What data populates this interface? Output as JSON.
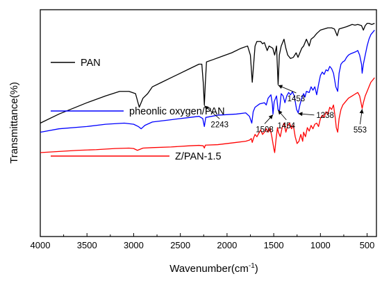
{
  "chart_data": {
    "type": "line",
    "xlabel": "Wavenumber(cm",
    "xlabel_sup": "-1",
    "xlabel_close": ")",
    "ylabel": "Transmittance(%)",
    "xlim": [
      4000,
      400
    ],
    "xticks": [
      "4000",
      "3500",
      "3000",
      "2500",
      "2000",
      "1500",
      "1000",
      "500"
    ],
    "xtick_values": [
      4000,
      3500,
      3000,
      2500,
      2000,
      1500,
      1000,
      500
    ],
    "ylim": [
      0,
      100
    ],
    "yticks_labeled": false,
    "grid": false,
    "legend_placement": "inline-left",
    "series": [
      {
        "name": "PAN",
        "color": "#000000",
        "points": [
          [
            4000,
            50
          ],
          [
            3800,
            54
          ],
          [
            3500,
            59
          ],
          [
            3300,
            62
          ],
          [
            3150,
            64
          ],
          [
            3050,
            64
          ],
          [
            2980,
            63
          ],
          [
            2940,
            57
          ],
          [
            2900,
            61
          ],
          [
            2850,
            63
          ],
          [
            2800,
            66
          ],
          [
            2700,
            68
          ],
          [
            2600,
            70
          ],
          [
            2500,
            72
          ],
          [
            2400,
            74
          ],
          [
            2300,
            76
          ],
          [
            2270,
            76
          ],
          [
            2255,
            68
          ],
          [
            2243,
            58
          ],
          [
            2232,
            68
          ],
          [
            2220,
            77
          ],
          [
            2150,
            78
          ],
          [
            2050,
            79.5
          ],
          [
            1950,
            81
          ],
          [
            1850,
            83
          ],
          [
            1780,
            84
          ],
          [
            1750,
            80
          ],
          [
            1730,
            68
          ],
          [
            1715,
            76
          ],
          [
            1700,
            84
          ],
          [
            1680,
            86
          ],
          [
            1640,
            86
          ],
          [
            1620,
            85
          ],
          [
            1600,
            85.5
          ],
          [
            1570,
            82
          ],
          [
            1550,
            84
          ],
          [
            1510,
            83
          ],
          [
            1490,
            80
          ],
          [
            1470,
            84
          ],
          [
            1453,
            67
          ],
          [
            1440,
            80
          ],
          [
            1420,
            84
          ],
          [
            1390,
            87
          ],
          [
            1370,
            83
          ],
          [
            1350,
            80
          ],
          [
            1320,
            78.5
          ],
          [
            1290,
            79
          ],
          [
            1260,
            81
          ],
          [
            1240,
            79
          ],
          [
            1220,
            81
          ],
          [
            1200,
            83
          ],
          [
            1180,
            84
          ],
          [
            1150,
            87
          ],
          [
            1120,
            84
          ],
          [
            1100,
            87
          ],
          [
            1070,
            88
          ],
          [
            1040,
            89.5
          ],
          [
            1000,
            91
          ],
          [
            960,
            91.5
          ],
          [
            920,
            92
          ],
          [
            880,
            92
          ],
          [
            850,
            91.5
          ],
          [
            820,
            88.5
          ],
          [
            800,
            91.5
          ],
          [
            760,
            92
          ],
          [
            720,
            92.5
          ],
          [
            690,
            93
          ],
          [
            660,
            93.5
          ],
          [
            630,
            93.2
          ],
          [
            600,
            93.5
          ],
          [
            560,
            93
          ],
          [
            540,
            91
          ],
          [
            520,
            93
          ],
          [
            500,
            94
          ],
          [
            480,
            94
          ],
          [
            450,
            93.5
          ],
          [
            420,
            94
          ]
        ]
      },
      {
        "name": "pheonlic oxygen/PAN",
        "color": "#0000FF",
        "points": [
          [
            4000,
            46
          ],
          [
            3800,
            47.5
          ],
          [
            3500,
            48.5
          ],
          [
            3300,
            49.5
          ],
          [
            3100,
            50
          ],
          [
            3000,
            49.5
          ],
          [
            2950,
            48.5
          ],
          [
            2920,
            47.5
          ],
          [
            2880,
            49
          ],
          [
            2800,
            50.5
          ],
          [
            2600,
            51.5
          ],
          [
            2400,
            52.5
          ],
          [
            2300,
            53
          ],
          [
            2260,
            52
          ],
          [
            2243,
            48.5
          ],
          [
            2228,
            52.5
          ],
          [
            2100,
            53.5
          ],
          [
            1900,
            54
          ],
          [
            1800,
            54.5
          ],
          [
            1760,
            53
          ],
          [
            1735,
            50
          ],
          [
            1720,
            55
          ],
          [
            1700,
            57
          ],
          [
            1650,
            58.5
          ],
          [
            1600,
            59
          ],
          [
            1580,
            58
          ],
          [
            1560,
            61
          ],
          [
            1530,
            62.5
          ],
          [
            1515,
            58.5
          ],
          [
            1508,
            54
          ],
          [
            1495,
            59.5
          ],
          [
            1470,
            62
          ],
          [
            1454,
            56
          ],
          [
            1440,
            55
          ],
          [
            1420,
            63
          ],
          [
            1400,
            62
          ],
          [
            1380,
            59
          ],
          [
            1360,
            62
          ],
          [
            1340,
            63.5
          ],
          [
            1320,
            62.5
          ],
          [
            1300,
            63.8
          ],
          [
            1280,
            62
          ],
          [
            1255,
            56
          ],
          [
            1238,
            54.5
          ],
          [
            1220,
            58
          ],
          [
            1200,
            61
          ],
          [
            1180,
            63
          ],
          [
            1165,
            61.5
          ],
          [
            1150,
            64
          ],
          [
            1120,
            63.5
          ],
          [
            1100,
            66
          ],
          [
            1080,
            64.5
          ],
          [
            1060,
            66
          ],
          [
            1040,
            62.5
          ],
          [
            1020,
            67
          ],
          [
            1000,
            71
          ],
          [
            980,
            72.5
          ],
          [
            960,
            71.5
          ],
          [
            940,
            73.5
          ],
          [
            920,
            73
          ],
          [
            900,
            75
          ],
          [
            880,
            74
          ],
          [
            860,
            72
          ],
          [
            835,
            66
          ],
          [
            815,
            64
          ],
          [
            800,
            72
          ],
          [
            780,
            76
          ],
          [
            760,
            77
          ],
          [
            740,
            77.5
          ],
          [
            720,
            79
          ],
          [
            700,
            80
          ],
          [
            680,
            80.5
          ],
          [
            650,
            81
          ],
          [
            620,
            81.5
          ],
          [
            600,
            82
          ],
          [
            580,
            80
          ],
          [
            560,
            76
          ],
          [
            553,
            72
          ],
          [
            540,
            76
          ],
          [
            520,
            80
          ],
          [
            500,
            84
          ],
          [
            480,
            87
          ],
          [
            460,
            89
          ],
          [
            440,
            90
          ],
          [
            420,
            91
          ]
        ]
      },
      {
        "name": "Z/PAN-1.5",
        "color": "#FF0000",
        "points": [
          [
            4000,
            37
          ],
          [
            3800,
            37.5
          ],
          [
            3600,
            38
          ],
          [
            3400,
            38.3
          ],
          [
            3200,
            38.8
          ],
          [
            3050,
            39
          ],
          [
            3000,
            38.8
          ],
          [
            2960,
            38
          ],
          [
            2930,
            38.5
          ],
          [
            2900,
            39
          ],
          [
            2800,
            39.2
          ],
          [
            2600,
            39.5
          ],
          [
            2400,
            40
          ],
          [
            2300,
            40.2
          ],
          [
            2255,
            40
          ],
          [
            2243,
            39
          ],
          [
            2232,
            40.3
          ],
          [
            2100,
            40.5
          ],
          [
            2000,
            41
          ],
          [
            1900,
            41.5
          ],
          [
            1800,
            42
          ],
          [
            1760,
            42.5
          ],
          [
            1740,
            43.2
          ],
          [
            1730,
            41.5
          ],
          [
            1715,
            43.5
          ],
          [
            1700,
            45
          ],
          [
            1680,
            44
          ],
          [
            1660,
            45.5
          ],
          [
            1640,
            47
          ],
          [
            1620,
            45
          ],
          [
            1600,
            46
          ],
          [
            1580,
            47.5
          ],
          [
            1560,
            46
          ],
          [
            1540,
            48
          ],
          [
            1520,
            44
          ],
          [
            1500,
            39
          ],
          [
            1490,
            37
          ],
          [
            1475,
            43
          ],
          [
            1460,
            48
          ],
          [
            1450,
            46
          ],
          [
            1430,
            44
          ],
          [
            1410,
            48
          ],
          [
            1390,
            50
          ],
          [
            1370,
            46
          ],
          [
            1350,
            49
          ],
          [
            1330,
            50
          ],
          [
            1310,
            47.5
          ],
          [
            1290,
            49
          ],
          [
            1270,
            44
          ],
          [
            1250,
            41
          ],
          [
            1230,
            42
          ],
          [
            1210,
            45
          ],
          [
            1190,
            42
          ],
          [
            1180,
            46
          ],
          [
            1160,
            44
          ],
          [
            1140,
            48
          ],
          [
            1120,
            46.5
          ],
          [
            1100,
            49
          ],
          [
            1080,
            47.5
          ],
          [
            1060,
            49.5
          ],
          [
            1040,
            50
          ],
          [
            1020,
            48.5
          ],
          [
            1000,
            52
          ],
          [
            980,
            53.5
          ],
          [
            960,
            52.5
          ],
          [
            940,
            55
          ],
          [
            920,
            54
          ],
          [
            900,
            57
          ],
          [
            880,
            56
          ],
          [
            860,
            58
          ],
          [
            840,
            52
          ],
          [
            830,
            48
          ],
          [
            815,
            46
          ],
          [
            800,
            52
          ],
          [
            780,
            56
          ],
          [
            760,
            58
          ],
          [
            740,
            59
          ],
          [
            720,
            60
          ],
          [
            700,
            61
          ],
          [
            680,
            61.5
          ],
          [
            660,
            62
          ],
          [
            640,
            62.5
          ],
          [
            620,
            63
          ],
          [
            600,
            63.5
          ],
          [
            580,
            62
          ],
          [
            565,
            59
          ],
          [
            553,
            56.5
          ],
          [
            540,
            59
          ],
          [
            520,
            62
          ],
          [
            500,
            64
          ],
          [
            480,
            66
          ],
          [
            460,
            68
          ],
          [
            440,
            69
          ],
          [
            420,
            70
          ]
        ]
      }
    ],
    "annotations": [
      {
        "text": "2243",
        "series": "PAN",
        "x": 2243
      },
      {
        "text": "1453",
        "series": "PAN",
        "x": 1453
      },
      {
        "text": "1508",
        "series": "pheonlic oxygen/PAN",
        "x": 1508
      },
      {
        "text": "1454",
        "series": "pheonlic oxygen/PAN",
        "x": 1454
      },
      {
        "text": "1238",
        "series": "pheonlic oxygen/PAN",
        "x": 1238
      },
      {
        "text": "553",
        "series": "Z/PAN-1.5",
        "x": 553
      }
    ]
  }
}
